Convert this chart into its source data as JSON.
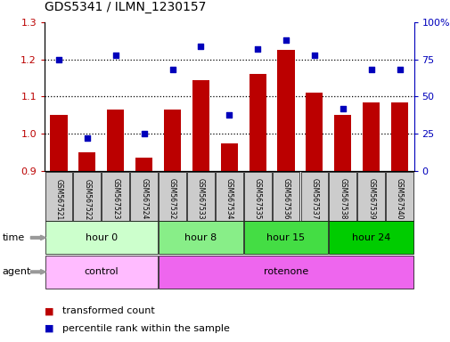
{
  "title": "GDS5341 / ILMN_1230157",
  "samples": [
    "GSM567521",
    "GSM567522",
    "GSM567523",
    "GSM567524",
    "GSM567532",
    "GSM567533",
    "GSM567534",
    "GSM567535",
    "GSM567536",
    "GSM567537",
    "GSM567538",
    "GSM567539",
    "GSM567540"
  ],
  "red_values": [
    1.05,
    0.95,
    1.065,
    0.935,
    1.065,
    1.145,
    0.975,
    1.16,
    1.225,
    1.11,
    1.05,
    1.085,
    1.085
  ],
  "blue_values": [
    75,
    22,
    78,
    25,
    68,
    84,
    38,
    82,
    88,
    78,
    42,
    68,
    68
  ],
  "ylim_left": [
    0.9,
    1.3
  ],
  "ylim_right": [
    0,
    100
  ],
  "yticks_left": [
    0.9,
    1.0,
    1.1,
    1.2,
    1.3
  ],
  "yticks_right": [
    0,
    25,
    50,
    75,
    100
  ],
  "ytick_labels_right": [
    "0",
    "25",
    "50",
    "75",
    "100%"
  ],
  "bar_color": "#bb0000",
  "dot_color": "#0000bb",
  "dot_size": 25,
  "time_groups": [
    {
      "label": "hour 0",
      "start": 0,
      "end": 4,
      "color": "#ccffcc"
    },
    {
      "label": "hour 8",
      "start": 4,
      "end": 7,
      "color": "#88ee88"
    },
    {
      "label": "hour 15",
      "start": 7,
      "end": 10,
      "color": "#44dd44"
    },
    {
      "label": "hour 24",
      "start": 10,
      "end": 13,
      "color": "#00cc00"
    }
  ],
  "agent_groups": [
    {
      "label": "control",
      "start": 0,
      "end": 4,
      "color": "#ffbbff"
    },
    {
      "label": "rotenone",
      "start": 4,
      "end": 13,
      "color": "#ee66ee"
    }
  ],
  "hline_vals": [
    1.0,
    1.1,
    1.2
  ],
  "bar_width": 0.6,
  "sample_bg_color": "#cccccc",
  "plot_bg_color": "#ffffff",
  "arrow_color": "#999999"
}
